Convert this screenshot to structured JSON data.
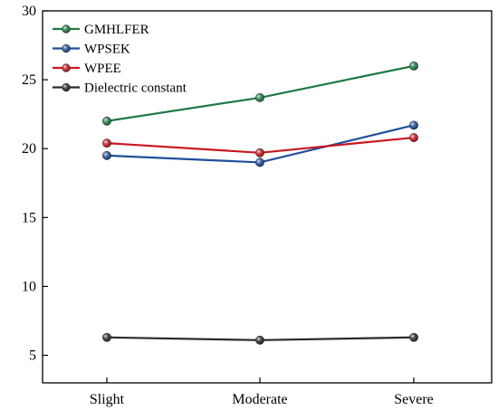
{
  "chart_data": {
    "type": "line",
    "categories": [
      "Slight",
      "Moderate",
      "Severe"
    ],
    "ylim": [
      3,
      30
    ],
    "yticks": [
      5,
      10,
      15,
      20,
      25,
      30
    ],
    "grid": false,
    "legend_position": "top-left",
    "series": [
      {
        "name": "GMHLFER",
        "color": "#1e7a44",
        "values": [
          22.0,
          23.7,
          26.0
        ]
      },
      {
        "name": "WPSEK",
        "color": "#1f4e9a",
        "values": [
          19.5,
          19.0,
          21.7
        ]
      },
      {
        "name": "WPEE",
        "color": "#c8171f",
        "values": [
          20.4,
          19.7,
          20.8
        ]
      },
      {
        "name": "Dielectric constant",
        "color": "#2b2b2b",
        "values": [
          6.3,
          6.1,
          6.3
        ]
      }
    ]
  }
}
